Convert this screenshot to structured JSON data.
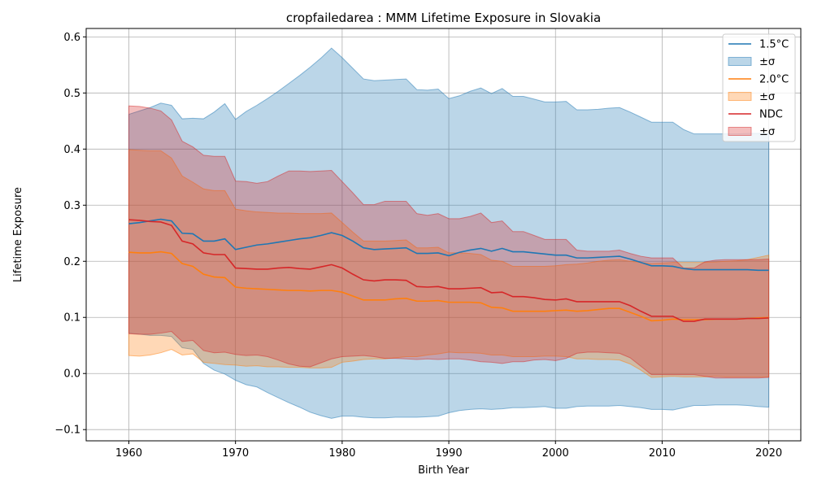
{
  "chart_data": {
    "type": "line",
    "title": "cropfailedarea : MMM Lifetime Exposure in Slovakia",
    "xlabel": "Birth Year",
    "ylabel": "Lifetime Exposure",
    "xlim": [
      1956,
      2023
    ],
    "ylim": [
      -0.12,
      0.615
    ],
    "xticks": [
      1960,
      1970,
      1980,
      1990,
      2000,
      2010,
      2020
    ],
    "yticks": [
      -0.1,
      0.0,
      0.1,
      0.2,
      0.3,
      0.4,
      0.5,
      0.6
    ],
    "grid": true,
    "legend_position": "top-right",
    "x": [
      1960,
      1961,
      1962,
      1963,
      1964,
      1965,
      1966,
      1967,
      1968,
      1969,
      1970,
      1971,
      1972,
      1973,
      1974,
      1975,
      1976,
      1977,
      1978,
      1979,
      1980,
      1981,
      1982,
      1983,
      1984,
      1985,
      1986,
      1987,
      1988,
      1989,
      1990,
      1991,
      1992,
      1993,
      1994,
      1995,
      1996,
      1997,
      1998,
      1999,
      2000,
      2001,
      2002,
      2003,
      2004,
      2005,
      2006,
      2007,
      2008,
      2009,
      2010,
      2011,
      2012,
      2013,
      2014,
      2015,
      2016,
      2017,
      2018,
      2019,
      2020
    ],
    "series": [
      {
        "name": "1.5°C",
        "band_name": "±σ",
        "color": "#1f77b4",
        "band_color": "#1f77b4",
        "band_opacity": 0.3,
        "mean": [
          0.267,
          0.269,
          0.272,
          0.275,
          0.272,
          0.25,
          0.249,
          0.236,
          0.236,
          0.24,
          0.221,
          0.225,
          0.229,
          0.231,
          0.234,
          0.237,
          0.24,
          0.242,
          0.246,
          0.251,
          0.246,
          0.236,
          0.224,
          0.221,
          0.222,
          0.223,
          0.224,
          0.214,
          0.214,
          0.215,
          0.21,
          0.216,
          0.22,
          0.223,
          0.218,
          0.223,
          0.217,
          0.217,
          0.215,
          0.213,
          0.211,
          0.211,
          0.206,
          0.206,
          0.207,
          0.208,
          0.209,
          0.204,
          0.198,
          0.192,
          0.192,
          0.191,
          0.187,
          0.185,
          0.185,
          0.185,
          0.185,
          0.185,
          0.185,
          0.184,
          0.184
        ],
        "upper": [
          0.462,
          0.468,
          0.474,
          0.482,
          0.478,
          0.454,
          0.455,
          0.454,
          0.466,
          0.481,
          0.453,
          0.467,
          0.478,
          0.49,
          0.503,
          0.517,
          0.531,
          0.546,
          0.562,
          0.58,
          0.563,
          0.544,
          0.525,
          0.522,
          0.523,
          0.524,
          0.525,
          0.506,
          0.505,
          0.507,
          0.49,
          0.495,
          0.503,
          0.509,
          0.499,
          0.508,
          0.494,
          0.494,
          0.489,
          0.484,
          0.484,
          0.485,
          0.47,
          0.47,
          0.471,
          0.473,
          0.474,
          0.466,
          0.457,
          0.448,
          0.448,
          0.448,
          0.435,
          0.427,
          0.427,
          0.427,
          0.427,
          0.427,
          0.428,
          0.428,
          0.428
        ],
        "lower": [
          0.072,
          0.07,
          0.068,
          0.068,
          0.066,
          0.046,
          0.043,
          0.018,
          0.006,
          -0.001,
          -0.012,
          -0.02,
          -0.024,
          -0.034,
          -0.043,
          -0.052,
          -0.06,
          -0.069,
          -0.075,
          -0.08,
          -0.076,
          -0.076,
          -0.078,
          -0.079,
          -0.079,
          -0.078,
          -0.078,
          -0.078,
          -0.077,
          -0.076,
          -0.07,
          -0.066,
          -0.064,
          -0.063,
          -0.064,
          -0.063,
          -0.061,
          -0.061,
          -0.06,
          -0.059,
          -0.062,
          -0.062,
          -0.059,
          -0.058,
          -0.058,
          -0.058,
          -0.057,
          -0.059,
          -0.061,
          -0.064,
          -0.064,
          -0.065,
          -0.061,
          -0.057,
          -0.057,
          -0.056,
          -0.056,
          -0.056,
          -0.057,
          -0.059,
          -0.06
        ]
      },
      {
        "name": "2.0°C",
        "band_name": "±σ",
        "color": "#ff7f0e",
        "band_color": "#ff7f0e",
        "band_opacity": 0.3,
        "mean": [
          0.216,
          0.215,
          0.215,
          0.217,
          0.214,
          0.196,
          0.191,
          0.177,
          0.172,
          0.171,
          0.154,
          0.152,
          0.151,
          0.15,
          0.149,
          0.148,
          0.148,
          0.147,
          0.148,
          0.148,
          0.145,
          0.138,
          0.131,
          0.131,
          0.131,
          0.133,
          0.134,
          0.129,
          0.129,
          0.13,
          0.127,
          0.127,
          0.127,
          0.126,
          0.118,
          0.117,
          0.111,
          0.111,
          0.111,
          0.111,
          0.112,
          0.113,
          0.111,
          0.112,
          0.114,
          0.116,
          0.116,
          0.109,
          0.102,
          0.094,
          0.095,
          0.097,
          0.096,
          0.096,
          0.096,
          0.097,
          0.097,
          0.097,
          0.098,
          0.099,
          0.1
        ],
        "upper": [
          0.399,
          0.398,
          0.397,
          0.397,
          0.384,
          0.352,
          0.341,
          0.329,
          0.326,
          0.326,
          0.293,
          0.29,
          0.288,
          0.287,
          0.286,
          0.286,
          0.285,
          0.285,
          0.285,
          0.286,
          0.269,
          0.252,
          0.236,
          0.236,
          0.236,
          0.237,
          0.238,
          0.224,
          0.224,
          0.225,
          0.215,
          0.215,
          0.214,
          0.212,
          0.202,
          0.2,
          0.191,
          0.191,
          0.191,
          0.191,
          0.192,
          0.194,
          0.195,
          0.197,
          0.2,
          0.202,
          0.203,
          0.2,
          0.198,
          0.196,
          0.197,
          0.198,
          0.198,
          0.198,
          0.198,
          0.199,
          0.2,
          0.201,
          0.203,
          0.207,
          0.211
        ],
        "lower": [
          0.032,
          0.031,
          0.033,
          0.037,
          0.043,
          0.033,
          0.035,
          0.02,
          0.018,
          0.016,
          0.015,
          0.013,
          0.014,
          0.012,
          0.012,
          0.011,
          0.011,
          0.01,
          0.01,
          0.011,
          0.02,
          0.022,
          0.025,
          0.026,
          0.026,
          0.028,
          0.03,
          0.03,
          0.033,
          0.035,
          0.038,
          0.037,
          0.037,
          0.036,
          0.033,
          0.033,
          0.03,
          0.03,
          0.03,
          0.031,
          0.031,
          0.03,
          0.026,
          0.026,
          0.025,
          0.025,
          0.024,
          0.017,
          0.006,
          -0.007,
          -0.006,
          -0.005,
          -0.006,
          -0.006,
          -0.006,
          -0.005,
          -0.006,
          -0.006,
          -0.006,
          -0.006,
          -0.006
        ]
      },
      {
        "name": "NDC",
        "band_name": "±σ",
        "color": "#d62728",
        "band_color": "#d62728",
        "band_opacity": 0.3,
        "mean": [
          0.274,
          0.273,
          0.271,
          0.27,
          0.264,
          0.236,
          0.231,
          0.215,
          0.212,
          0.212,
          0.188,
          0.187,
          0.186,
          0.186,
          0.188,
          0.189,
          0.187,
          0.186,
          0.19,
          0.194,
          0.188,
          0.177,
          0.167,
          0.165,
          0.167,
          0.167,
          0.166,
          0.155,
          0.154,
          0.155,
          0.151,
          0.151,
          0.152,
          0.153,
          0.144,
          0.145,
          0.137,
          0.137,
          0.135,
          0.132,
          0.131,
          0.133,
          0.128,
          0.128,
          0.128,
          0.128,
          0.128,
          0.121,
          0.111,
          0.102,
          0.102,
          0.102,
          0.093,
          0.093,
          0.097,
          0.097,
          0.097,
          0.097,
          0.098,
          0.098,
          0.099
        ],
        "upper": [
          0.477,
          0.476,
          0.473,
          0.468,
          0.452,
          0.414,
          0.404,
          0.389,
          0.387,
          0.387,
          0.343,
          0.342,
          0.339,
          0.342,
          0.352,
          0.361,
          0.361,
          0.36,
          0.361,
          0.362,
          0.342,
          0.322,
          0.301,
          0.301,
          0.307,
          0.307,
          0.307,
          0.285,
          0.282,
          0.285,
          0.276,
          0.276,
          0.28,
          0.286,
          0.269,
          0.272,
          0.253,
          0.253,
          0.246,
          0.239,
          0.239,
          0.239,
          0.22,
          0.218,
          0.218,
          0.218,
          0.22,
          0.214,
          0.209,
          0.206,
          0.206,
          0.206,
          0.188,
          0.188,
          0.199,
          0.202,
          0.203,
          0.203,
          0.203,
          0.203,
          0.204
        ],
        "lower": [
          0.071,
          0.07,
          0.07,
          0.072,
          0.075,
          0.057,
          0.059,
          0.041,
          0.037,
          0.038,
          0.034,
          0.032,
          0.033,
          0.03,
          0.024,
          0.017,
          0.013,
          0.012,
          0.019,
          0.026,
          0.03,
          0.031,
          0.032,
          0.03,
          0.027,
          0.027,
          0.026,
          0.025,
          0.026,
          0.025,
          0.026,
          0.026,
          0.024,
          0.021,
          0.02,
          0.018,
          0.021,
          0.021,
          0.024,
          0.025,
          0.023,
          0.027,
          0.036,
          0.038,
          0.038,
          0.037,
          0.036,
          0.028,
          0.013,
          -0.002,
          -0.002,
          -0.002,
          -0.002,
          -0.002,
          -0.005,
          -0.008,
          -0.008,
          -0.008,
          -0.008,
          -0.008,
          -0.007
        ]
      }
    ]
  }
}
